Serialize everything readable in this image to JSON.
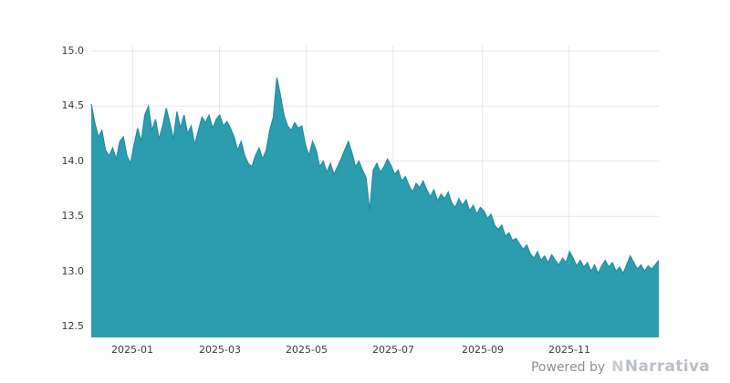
{
  "footer": {
    "powered_by": "Powered by",
    "brand": "Narrativa",
    "brand_icon": "N"
  },
  "chart_data": {
    "type": "area",
    "title": "",
    "xlabel": "",
    "ylabel": "",
    "ylim": [
      12.5,
      15.0
    ],
    "grid": true,
    "legend": "none",
    "grid_color": "#e7e7e7",
    "fill_color": "#2b9dae",
    "line_color": "#1d8fa0",
    "label_color": "#3a3a3a",
    "y_ticks": [
      "12.5",
      "13.0",
      "13.5",
      "14.0",
      "14.5",
      "15.0"
    ],
    "x_ticks": [
      {
        "label": "2025-01",
        "pos": 0.073
      },
      {
        "label": "2025-03",
        "pos": 0.226
      },
      {
        "label": "2025-05",
        "pos": 0.379
      },
      {
        "label": "2025-07",
        "pos": 0.532
      },
      {
        "label": "2025-09",
        "pos": 0.689
      },
      {
        "label": "2025-11",
        "pos": 0.842
      }
    ],
    "series": [
      {
        "name": "value",
        "values": [
          14.52,
          14.35,
          14.22,
          14.28,
          14.1,
          14.05,
          14.12,
          14.02,
          14.18,
          14.22,
          14.05,
          13.98,
          14.15,
          14.3,
          14.18,
          14.42,
          14.5,
          14.28,
          14.38,
          14.2,
          14.32,
          14.48,
          14.35,
          14.2,
          14.45,
          14.3,
          14.42,
          14.25,
          14.32,
          14.15,
          14.28,
          14.4,
          14.35,
          14.42,
          14.3,
          14.38,
          14.42,
          14.32,
          14.36,
          14.3,
          14.22,
          14.1,
          14.18,
          14.05,
          13.98,
          13.95,
          14.05,
          14.12,
          14.02,
          14.1,
          14.28,
          14.4,
          14.76,
          14.6,
          14.42,
          14.32,
          14.28,
          14.35,
          14.3,
          14.32,
          14.15,
          14.05,
          14.18,
          14.1,
          13.95,
          14.0,
          13.9,
          13.98,
          13.88,
          13.95,
          14.02,
          14.1,
          14.18,
          14.08,
          13.95,
          14.0,
          13.92,
          13.85,
          13.55,
          13.92,
          13.98,
          13.9,
          13.95,
          14.02,
          13.96,
          13.88,
          13.92,
          13.82,
          13.86,
          13.78,
          13.72,
          13.8,
          13.76,
          13.82,
          13.74,
          13.68,
          13.74,
          13.64,
          13.7,
          13.66,
          13.72,
          13.62,
          13.58,
          13.66,
          13.6,
          13.65,
          13.55,
          13.6,
          13.52,
          13.58,
          13.55,
          13.48,
          13.52,
          13.42,
          13.38,
          13.42,
          13.32,
          13.35,
          13.28,
          13.3,
          13.25,
          13.2,
          13.24,
          13.16,
          13.12,
          13.18,
          13.1,
          13.14,
          13.08,
          13.15,
          13.1,
          13.06,
          13.12,
          13.08,
          13.18,
          13.12,
          13.05,
          13.1,
          13.04,
          13.08,
          13.0,
          13.06,
          12.98,
          13.05,
          13.1,
          13.04,
          13.08,
          13.0,
          13.04,
          12.98,
          13.06,
          13.14,
          13.08,
          13.02,
          13.06,
          13.0,
          13.05,
          13.02,
          13.06,
          13.1
        ]
      }
    ]
  }
}
